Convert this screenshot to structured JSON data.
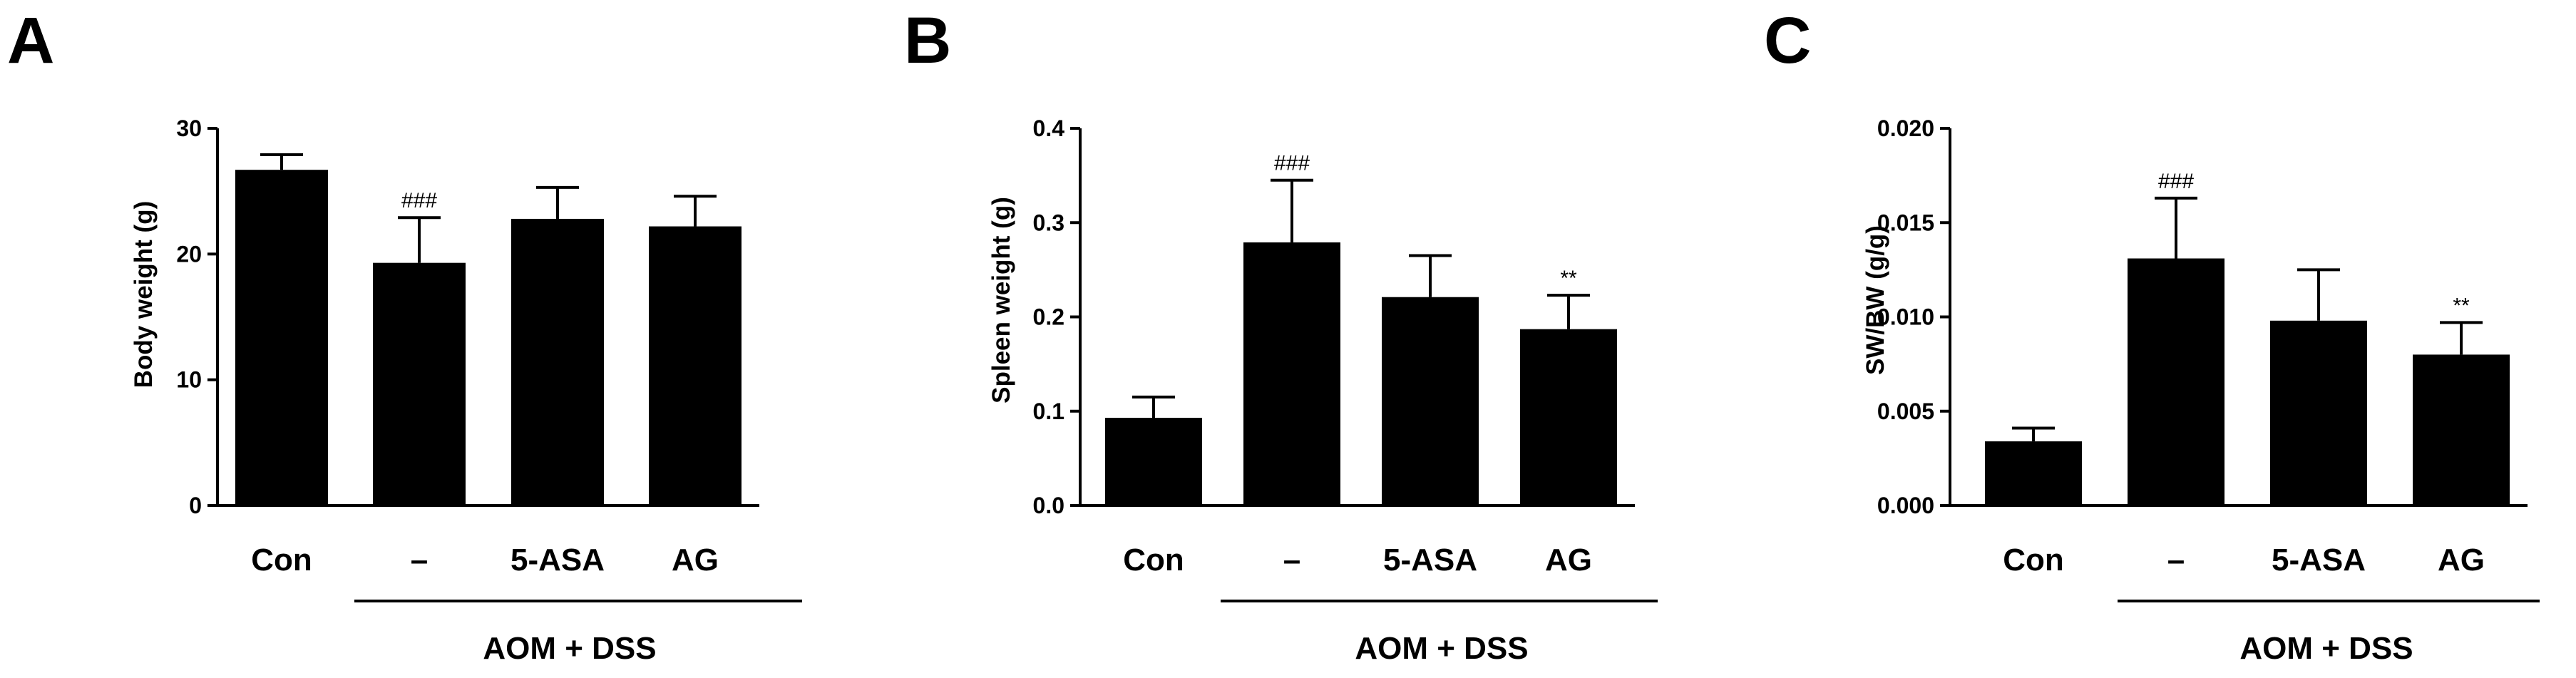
{
  "figure": {
    "background": "#ffffff",
    "bar_color": "#000000"
  },
  "chart_data": [
    {
      "panel": "A",
      "type": "bar",
      "ylabel": "Body weight (g)",
      "ylim": [
        0,
        30
      ],
      "yticks": [
        0,
        10,
        20,
        30
      ],
      "ytick_labels": [
        "0",
        "10",
        "20",
        "30"
      ],
      "categories": [
        "Con",
        "–",
        "5-ASA",
        "AG"
      ],
      "values": [
        26.7,
        19.3,
        22.8,
        22.2
      ],
      "errors": [
        1.2,
        3.6,
        2.5,
        2.4
      ],
      "annotations": [
        "",
        "###",
        "",
        ""
      ],
      "group_label": "AOM + DSS"
    },
    {
      "panel": "B",
      "type": "bar",
      "ylabel": "Spleen weight (g)",
      "ylim": [
        0,
        0.4
      ],
      "yticks": [
        0,
        0.1,
        0.2,
        0.3,
        0.4
      ],
      "ytick_labels": [
        "0.0",
        "0.1",
        "0.2",
        "0.3",
        "0.4"
      ],
      "categories": [
        "Con",
        "–",
        "5-ASA",
        "AG"
      ],
      "values": [
        0.093,
        0.279,
        0.221,
        0.187
      ],
      "errors": [
        0.022,
        0.066,
        0.044,
        0.036
      ],
      "annotations": [
        "",
        "###",
        "",
        "**"
      ],
      "group_label": "AOM + DSS"
    },
    {
      "panel": "C",
      "type": "bar",
      "ylabel": "SW/BW (g/g)",
      "ylim": [
        0,
        0.02
      ],
      "yticks": [
        0,
        0.005,
        0.01,
        0.015,
        0.02
      ],
      "ytick_labels": [
        "0.000",
        "0.005",
        "0.010",
        "0.015",
        "0.020"
      ],
      "categories": [
        "Con",
        "–",
        "5-ASA",
        "AG"
      ],
      "values": [
        0.0034,
        0.0131,
        0.0098,
        0.008
      ],
      "errors": [
        0.0007,
        0.0032,
        0.0027,
        0.0017
      ],
      "annotations": [
        "",
        "###",
        "",
        "**"
      ],
      "group_label": "AOM + DSS"
    }
  ]
}
